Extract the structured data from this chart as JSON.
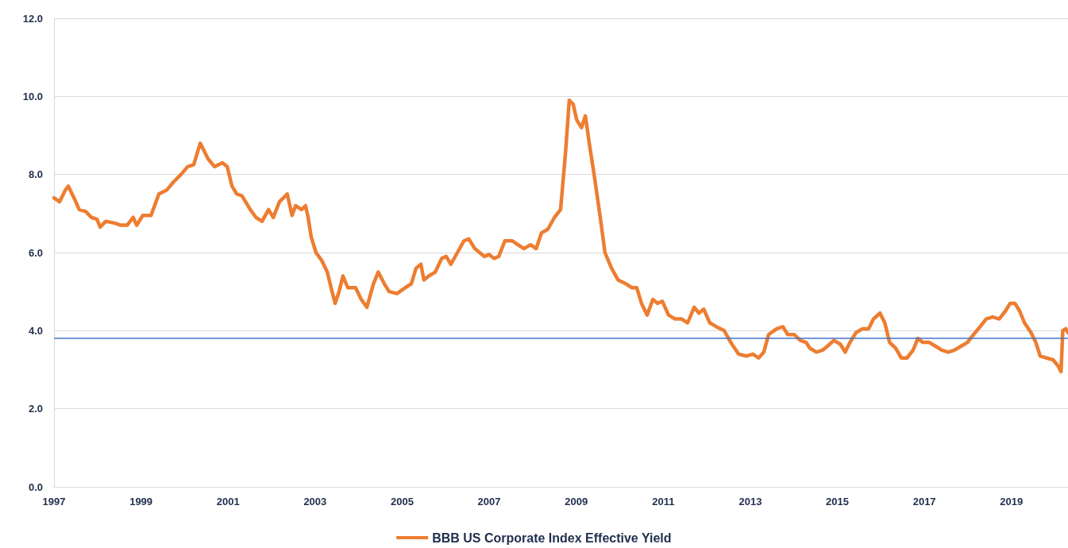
{
  "chart_data": {
    "type": "line",
    "xlim": [
      1997,
      2020.3
    ],
    "xticks": [
      1997,
      1999,
      2001,
      2003,
      2005,
      2007,
      2009,
      2011,
      2013,
      2015,
      2017,
      2019
    ],
    "ylim": [
      0,
      12
    ],
    "yticks": [
      {
        "value": 0,
        "label": "0.0"
      },
      {
        "value": 2,
        "label": "2.0"
      },
      {
        "value": 4,
        "label": "4.0"
      },
      {
        "value": 6,
        "label": "6.0"
      },
      {
        "value": 8,
        "label": "8.0"
      },
      {
        "value": 10,
        "label": "10.0"
      },
      {
        "value": 12,
        "label": "12.0"
      }
    ],
    "grid": "y",
    "legend": "bottom",
    "marker": "none",
    "line_style": "solid",
    "ref_lines": [
      {
        "axis": "y",
        "value": 3.8,
        "color": "#4472c4"
      }
    ],
    "series": [
      {
        "name": "BBB US Corporate Index Effective Yield",
        "color": "#ed7d31",
        "x": [
          1997.0,
          1997.13,
          1997.26,
          1997.33,
          1997.46,
          1997.58,
          1997.73,
          1997.86,
          1997.99,
          1998.06,
          1998.19,
          1998.41,
          1998.53,
          1998.68,
          1998.82,
          1998.9,
          1999.04,
          1999.23,
          1999.41,
          1999.59,
          1999.74,
          1999.92,
          2000.07,
          2000.21,
          2000.36,
          2000.54,
          2000.69,
          2000.87,
          2000.98,
          2001.09,
          2001.2,
          2001.32,
          2001.51,
          2001.64,
          2001.78,
          2001.93,
          2002.04,
          2002.18,
          2002.36,
          2002.47,
          2002.55,
          2002.69,
          2002.78,
          2002.84,
          2002.91,
          2003.02,
          2003.15,
          2003.28,
          2003.39,
          2003.46,
          2003.55,
          2003.64,
          2003.75,
          2003.93,
          2004.06,
          2004.19,
          2004.34,
          2004.45,
          2004.59,
          2004.7,
          2004.88,
          2005.07,
          2005.21,
          2005.32,
          2005.43,
          2005.5,
          2005.61,
          2005.76,
          2005.91,
          2006.01,
          2006.12,
          2006.27,
          2006.42,
          2006.53,
          2006.67,
          2006.78,
          2006.89,
          2007.0,
          2007.11,
          2007.22,
          2007.36,
          2007.53,
          2007.66,
          2007.8,
          2007.95,
          2008.08,
          2008.2,
          2008.35,
          2008.5,
          2008.64,
          2008.75,
          2008.84,
          2008.93,
          2009.01,
          2009.12,
          2009.21,
          2009.3,
          2009.41,
          2009.54,
          2009.66,
          2009.81,
          2009.96,
          2010.14,
          2010.28,
          2010.39,
          2010.5,
          2010.63,
          2010.76,
          2010.87,
          2010.98,
          2011.12,
          2011.27,
          2011.42,
          2011.56,
          2011.71,
          2011.82,
          2011.93,
          2012.07,
          2012.22,
          2012.4,
          2012.55,
          2012.73,
          2012.91,
          2013.06,
          2013.19,
          2013.31,
          2013.42,
          2013.61,
          2013.75,
          2013.86,
          2014.01,
          2014.15,
          2014.28,
          2014.37,
          2014.52,
          2014.66,
          2014.77,
          2014.92,
          2015.07,
          2015.18,
          2015.29,
          2015.43,
          2015.58,
          2015.72,
          2015.83,
          2015.98,
          2016.09,
          2016.2,
          2016.34,
          2016.47,
          2016.6,
          2016.74,
          2016.85,
          2016.96,
          2017.11,
          2017.26,
          2017.4,
          2017.55,
          2017.69,
          2017.84,
          2017.99,
          2018.13,
          2018.28,
          2018.42,
          2018.57,
          2018.72,
          2018.86,
          2018.97,
          2019.08,
          2019.19,
          2019.3,
          2019.45,
          2019.56,
          2019.66,
          2019.81,
          2019.96,
          2020.07,
          2020.14,
          2020.18,
          2020.25,
          2020.3
        ],
        "values": [
          7.4,
          7.3,
          7.6,
          7.7,
          7.4,
          7.1,
          7.05,
          6.9,
          6.85,
          6.65,
          6.8,
          6.75,
          6.7,
          6.7,
          6.9,
          6.7,
          6.95,
          6.95,
          7.5,
          7.6,
          7.8,
          8.0,
          8.2,
          8.25,
          8.8,
          8.4,
          8.2,
          8.3,
          8.2,
          7.7,
          7.5,
          7.45,
          7.1,
          6.9,
          6.8,
          7.1,
          6.9,
          7.3,
          7.5,
          6.95,
          7.2,
          7.1,
          7.2,
          6.9,
          6.4,
          6.0,
          5.8,
          5.5,
          5.0,
          4.7,
          5.0,
          5.4,
          5.1,
          5.1,
          4.8,
          4.6,
          5.2,
          5.5,
          5.2,
          5.0,
          4.95,
          5.1,
          5.2,
          5.6,
          5.7,
          5.3,
          5.4,
          5.5,
          5.85,
          5.9,
          5.7,
          6.0,
          6.3,
          6.35,
          6.1,
          6.0,
          5.9,
          5.95,
          5.85,
          5.9,
          6.3,
          6.3,
          6.2,
          6.1,
          6.2,
          6.1,
          6.5,
          6.6,
          6.9,
          7.1,
          8.5,
          9.9,
          9.8,
          9.4,
          9.2,
          9.5,
          8.8,
          8.0,
          7.0,
          6.0,
          5.6,
          5.3,
          5.2,
          5.1,
          5.1,
          4.7,
          4.4,
          4.8,
          4.7,
          4.75,
          4.4,
          4.3,
          4.3,
          4.2,
          4.6,
          4.45,
          4.55,
          4.2,
          4.1,
          4.0,
          3.7,
          3.4,
          3.35,
          3.4,
          3.3,
          3.45,
          3.9,
          4.05,
          4.1,
          3.9,
          3.9,
          3.75,
          3.7,
          3.55,
          3.45,
          3.5,
          3.6,
          3.75,
          3.65,
          3.45,
          3.7,
          3.95,
          4.05,
          4.05,
          4.3,
          4.45,
          4.2,
          3.7,
          3.55,
          3.3,
          3.3,
          3.5,
          3.8,
          3.7,
          3.7,
          3.6,
          3.5,
          3.45,
          3.5,
          3.6,
          3.7,
          3.9,
          4.1,
          4.3,
          4.35,
          4.3,
          4.5,
          4.7,
          4.7,
          4.5,
          4.2,
          3.95,
          3.7,
          3.35,
          3.3,
          3.25,
          3.1,
          2.95,
          4.0,
          4.05,
          3.95
        ]
      }
    ]
  }
}
